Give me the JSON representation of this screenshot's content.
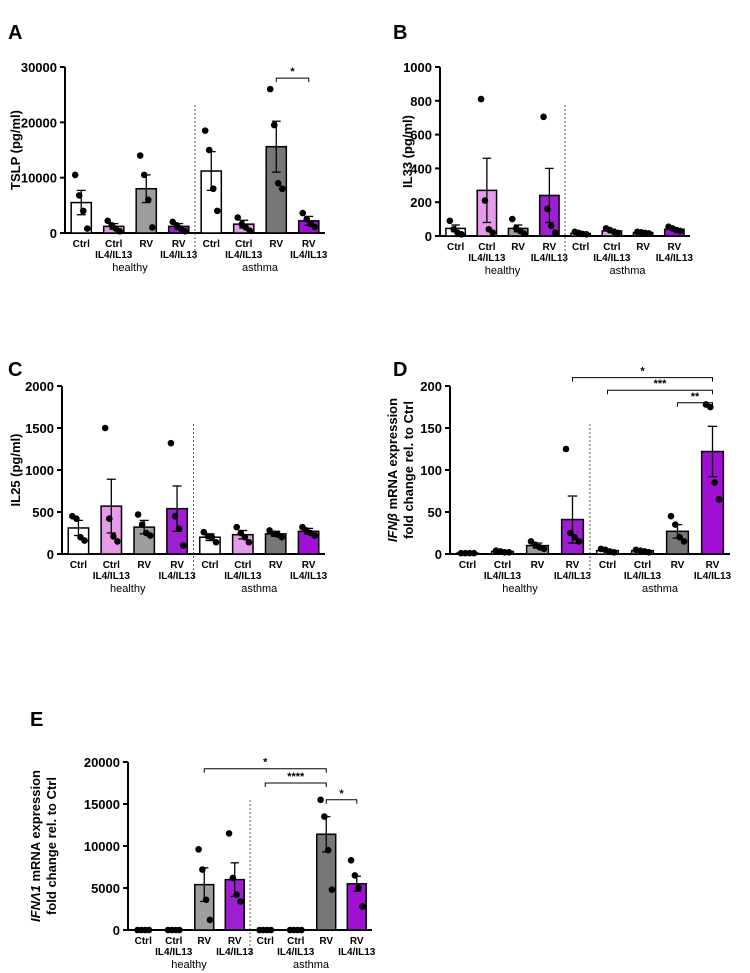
{
  "chart_data": [
    {
      "type": "bar",
      "panel": "A",
      "ylabel": "TSLP (pg/ml)",
      "ylim": [
        0,
        30000
      ],
      "yticks": [
        0,
        10000,
        20000,
        30000
      ],
      "ytick_labels": [
        "0",
        "10000",
        "20000",
        "30000"
      ],
      "categories": [
        {
          "line1": "Ctrl",
          "line2": "",
          "color": "#ffffff",
          "mean": 5500,
          "err": 2200,
          "points": [
            10500,
            6800,
            4000,
            800
          ]
        },
        {
          "line1": "Ctrl",
          "line2": "IL4/IL13",
          "color": "#e59be8",
          "mean": 1200,
          "err": 500,
          "points": [
            2200,
            1400,
            800,
            300
          ]
        },
        {
          "line1": "RV",
          "line2": "",
          "color": "#9e9e9e",
          "mean": 8000,
          "err": 2500,
          "points": [
            14000,
            10500,
            6000,
            1000
          ]
        },
        {
          "line1": "RV",
          "line2": "IL4/IL13",
          "color": "#9e1fcf",
          "mean": 1200,
          "err": 500,
          "points": [
            2000,
            1400,
            800,
            300
          ]
        },
        {
          "line1": "Ctrl",
          "line2": "",
          "color": "#ffffff",
          "mean": 11200,
          "err": 3500,
          "points": [
            18500,
            15000,
            8000,
            4000
          ]
        },
        {
          "line1": "Ctrl",
          "line2": "IL4/IL13",
          "color": "#e59be8",
          "mean": 1600,
          "err": 700,
          "points": [
            2800,
            1600,
            1000,
            400
          ]
        },
        {
          "line1": "RV",
          "line2": "",
          "color": "#777777",
          "mean": 15600,
          "err": 4600,
          "points": [
            26000,
            19500,
            9000,
            8000
          ]
        },
        {
          "line1": "RV",
          "line2": "IL4/IL13",
          "color": "#a20fd4",
          "mean": 2200,
          "err": 800,
          "points": [
            3600,
            2500,
            1600,
            1100
          ]
        }
      ],
      "groups": [
        {
          "label": "healthy"
        },
        {
          "label": "asthma"
        }
      ],
      "significance": [
        {
          "from": 6,
          "to": 7,
          "y": 28000,
          "label": "*"
        }
      ]
    },
    {
      "type": "bar",
      "panel": "B",
      "ylabel": "IL33 (pg/ml)",
      "ylim": [
        0,
        1000
      ],
      "yticks": [
        0,
        200,
        400,
        600,
        800,
        1000
      ],
      "ytick_labels": [
        "0",
        "200",
        "400",
        "600",
        "800",
        "1000"
      ],
      "categories": [
        {
          "line1": "Ctrl",
          "line2": "",
          "color": "#ffffff",
          "mean": 45,
          "err": 20,
          "points": [
            90,
            40,
            20,
            10
          ]
        },
        {
          "line1": "Ctrl",
          "line2": "IL4/IL13",
          "color": "#e59be8",
          "mean": 270,
          "err": 190,
          "points": [
            810,
            210,
            40,
            20
          ]
        },
        {
          "line1": "RV",
          "line2": "",
          "color": "#9e9e9e",
          "mean": 45,
          "err": 20,
          "points": [
            100,
            45,
            30,
            15
          ]
        },
        {
          "line1": "RV",
          "line2": "IL4/IL13",
          "color": "#9e1fcf",
          "mean": 240,
          "err": 160,
          "points": [
            705,
            160,
            60,
            20
          ]
        },
        {
          "line1": "Ctrl",
          "line2": "",
          "color": "#ffffff",
          "mean": 15,
          "err": 5,
          "points": [
            25,
            18,
            12,
            10
          ]
        },
        {
          "line1": "Ctrl",
          "line2": "IL4/IL13",
          "color": "#e59be8",
          "mean": 30,
          "err": 10,
          "points": [
            45,
            35,
            25,
            18
          ]
        },
        {
          "line1": "RV",
          "line2": "",
          "color": "#777777",
          "mean": 20,
          "err": 5,
          "points": [
            25,
            22,
            18,
            15
          ]
        },
        {
          "line1": "RV",
          "line2": "IL4/IL13",
          "color": "#a20fd4",
          "mean": 40,
          "err": 8,
          "points": [
            55,
            45,
            35,
            30
          ]
        }
      ],
      "groups": [
        {
          "label": "healthy"
        },
        {
          "label": "asthma"
        }
      ],
      "significance": []
    },
    {
      "type": "bar",
      "panel": "C",
      "ylabel": "IL25 (pg/ml)",
      "ylim": [
        0,
        2000
      ],
      "yticks": [
        0,
        500,
        1000,
        1500,
        2000
      ],
      "ytick_labels": [
        "0",
        "500",
        "1000",
        "1500",
        "2000"
      ],
      "categories": [
        {
          "line1": "Ctrl",
          "line2": "",
          "color": "#ffffff",
          "mean": 310,
          "err": 90,
          "points": [
            450,
            420,
            200,
            160
          ]
        },
        {
          "line1": "Ctrl",
          "line2": "IL4/IL13",
          "color": "#e59be8",
          "mean": 570,
          "err": 320,
          "points": [
            1500,
            420,
            210,
            150
          ]
        },
        {
          "line1": "RV",
          "line2": "",
          "color": "#9e9e9e",
          "mean": 320,
          "err": 80,
          "points": [
            470,
            350,
            250,
            220
          ]
        },
        {
          "line1": "RV",
          "line2": "IL4/IL13",
          "color": "#9e1fcf",
          "mean": 540,
          "err": 270,
          "points": [
            1320,
            450,
            300,
            100
          ]
        },
        {
          "line1": "Ctrl",
          "line2": "",
          "color": "#ffffff",
          "mean": 200,
          "err": 40,
          "points": [
            260,
            210,
            200,
            140
          ]
        },
        {
          "line1": "Ctrl",
          "line2": "IL4/IL13",
          "color": "#e59be8",
          "mean": 230,
          "err": 50,
          "points": [
            320,
            250,
            200,
            140
          ]
        },
        {
          "line1": "RV",
          "line2": "",
          "color": "#777777",
          "mean": 240,
          "err": 30,
          "points": [
            280,
            240,
            230,
            200
          ]
        },
        {
          "line1": "RV",
          "line2": "IL4/IL13",
          "color": "#a20fd4",
          "mean": 270,
          "err": 35,
          "points": [
            320,
            280,
            250,
            220
          ]
        }
      ],
      "groups": [
        {
          "label": "healthy"
        },
        {
          "label": "asthma"
        }
      ],
      "significance": []
    },
    {
      "type": "bar",
      "panel": "D",
      "ylabel_italic": "IFNβ",
      "ylabel": " mRNA expression",
      "ylabel2": "fold change rel. to Ctrl",
      "ylim": [
        0,
        200
      ],
      "yticks": [
        0,
        50,
        100,
        150,
        200
      ],
      "ytick_labels": [
        "0",
        "50",
        "100",
        "150",
        "200"
      ],
      "categories": [
        {
          "line1": "Ctrl",
          "line2": "",
          "color": "#ffffff",
          "mean": 1,
          "err": 0,
          "points": [
            1,
            1,
            1,
            1
          ]
        },
        {
          "line1": "Ctrl",
          "line2": "IL4/IL13",
          "color": "#e59be8",
          "mean": 3,
          "err": 1,
          "points": [
            4,
            3,
            2,
            2
          ]
        },
        {
          "line1": "RV",
          "line2": "",
          "color": "#9e9e9e",
          "mean": 10,
          "err": 3,
          "points": [
            15,
            11,
            8,
            6
          ]
        },
        {
          "line1": "RV",
          "line2": "IL4/IL13",
          "color": "#9e1fcf",
          "mean": 41,
          "err": 28,
          "points": [
            125,
            25,
            20,
            15
          ]
        },
        {
          "line1": "Ctrl",
          "line2": "",
          "color": "#ffffff",
          "mean": 4,
          "err": 1,
          "points": [
            6,
            5,
            3,
            2
          ]
        },
        {
          "line1": "Ctrl",
          "line2": "IL4/IL13",
          "color": "#e59be8",
          "mean": 4,
          "err": 1,
          "points": [
            5,
            4,
            3,
            2
          ]
        },
        {
          "line1": "RV",
          "line2": "",
          "color": "#777777",
          "mean": 27,
          "err": 8,
          "points": [
            45,
            35,
            20,
            15
          ]
        },
        {
          "line1": "RV",
          "line2": "IL4/IL13",
          "color": "#a20fd4",
          "mean": 122,
          "err": 30,
          "points": [
            178,
            175,
            85,
            65
          ]
        }
      ],
      "groups": [
        {
          "label": "healthy"
        },
        {
          "label": "asthma"
        }
      ],
      "significance": [
        {
          "from": 3,
          "to": 7,
          "y": 210,
          "label": "*"
        },
        {
          "from": 4,
          "to": 7,
          "y": 195,
          "label": "***"
        },
        {
          "from": 6,
          "to": 7,
          "y": 180,
          "label": "**"
        }
      ]
    },
    {
      "type": "bar",
      "panel": "E",
      "ylabel_italic": "IFNΛ1",
      "ylabel": " mRNA expression",
      "ylabel2": "fold change rel. to Ctrl",
      "ylim": [
        0,
        20000
      ],
      "yticks": [
        0,
        5000,
        10000,
        15000,
        20000
      ],
      "ytick_labels": [
        "0",
        "5000",
        "10000",
        "15000",
        "20000"
      ],
      "categories": [
        {
          "line1": "Ctrl",
          "line2": "",
          "color": "#ffffff",
          "mean": 1,
          "err": 0,
          "points": [
            1,
            1,
            1,
            1
          ]
        },
        {
          "line1": "Ctrl",
          "line2": "IL4/IL13",
          "color": "#e59be8",
          "mean": 1,
          "err": 0,
          "points": [
            1,
            1,
            1,
            1
          ]
        },
        {
          "line1": "RV",
          "line2": "",
          "color": "#9e9e9e",
          "mean": 5400,
          "err": 2000,
          "points": [
            9600,
            7200,
            3600,
            1200
          ]
        },
        {
          "line1": "RV",
          "line2": "IL4/IL13",
          "color": "#9e1fcf",
          "mean": 6000,
          "err": 2000,
          "points": [
            11500,
            6200,
            4200,
            3400
          ]
        },
        {
          "line1": "Ctrl",
          "line2": "",
          "color": "#ffffff",
          "mean": 1,
          "err": 0,
          "points": [
            1,
            1,
            1,
            1
          ]
        },
        {
          "line1": "Ctrl",
          "line2": "IL4/IL13",
          "color": "#e59be8",
          "mean": 1,
          "err": 0,
          "points": [
            1,
            1,
            1,
            1
          ]
        },
        {
          "line1": "RV",
          "line2": "",
          "color": "#777777",
          "mean": 11400,
          "err": 2100,
          "points": [
            15500,
            13500,
            9500,
            4800
          ]
        },
        {
          "line1": "RV",
          "line2": "IL4/IL13",
          "color": "#a20fd4",
          "mean": 5500,
          "err": 900,
          "points": [
            8300,
            6500,
            5000,
            2800
          ]
        }
      ],
      "groups": [
        {
          "label": "healthy"
        },
        {
          "label": "asthma"
        }
      ],
      "significance": [
        {
          "from": 2,
          "to": 6,
          "y": 19200,
          "label": "*"
        },
        {
          "from": 4,
          "to": 6,
          "y": 17500,
          "label": "****"
        },
        {
          "from": 6,
          "to": 7,
          "y": 15500,
          "label": "*"
        }
      ]
    }
  ]
}
